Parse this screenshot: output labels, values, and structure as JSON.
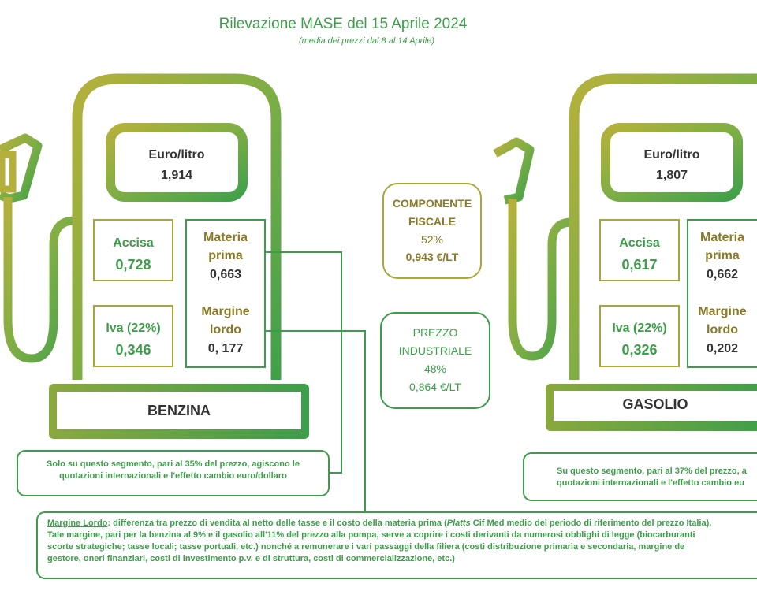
{
  "header": {
    "title": "Rilevazione MASE del 15 Aprile 2024",
    "subtitle": "(media dei prezzi dal 8 al 14 Aprile)"
  },
  "benzina": {
    "euro_litro_label": "Euro/litro",
    "euro_litro_value": "1,914",
    "accisa_label": "Accisa",
    "accisa_value": "0,728",
    "iva_label": "Iva (22%)",
    "iva_value": "0,346",
    "materia_line1": "Materia",
    "materia_line2": "prima",
    "materia_value": "0,663",
    "margine_line1": "Margine",
    "margine_line2": "lordo",
    "margine_value": "0, 177",
    "name": "BENZINA"
  },
  "gasolio": {
    "euro_litro_label": "Euro/litro",
    "euro_litro_value": "1,807",
    "accisa_label": "Accisa",
    "accisa_value": "0,617",
    "iva_label": "Iva (22%)",
    "iva_value": "0,326",
    "materia_line1": "Materia",
    "materia_line2": "prima",
    "materia_value": "0,662",
    "margine_line1": "Margine",
    "margine_line2": "lordo",
    "margine_value": "0,202",
    "name": "GASOLIO"
  },
  "componente_fiscale": {
    "line1": "COMPONENTE",
    "line2": "FISCALE",
    "percent": "52%",
    "value": "0,943 €/LT"
  },
  "prezzo_industriale": {
    "line1": "PREZZO",
    "line2": "INDUSTRIALE",
    "percent": "48%",
    "value": "0,864 €/LT"
  },
  "notes": {
    "benzina_line1": "Solo su questo segmento, pari al 35% del prezzo, agiscono le",
    "benzina_line2": "quotazioni internazionali e l'effetto cambio euro/dollaro",
    "gasolio_line1": "Su questo segmento, pari al 37% del prezzo, a",
    "gasolio_line2": "quotazioni internazionali e l'effetto cambio eu",
    "margine_term": "Margine Lordo",
    "margine_p1": ": differenza tra prezzo di vendita al netto delle tasse e il costo della materia prima (",
    "margine_platts": "Platts",
    "margine_p2": " Cif Med medio del periodo di riferimento del prezzo Italia).",
    "margine_line2": "Tale margine, pari per la benzina al 9% e il gasolio all'11% del prezzo alla pompa, serve a coprire i costi derivanti da numerosi obblighi di legge (biocarburanti",
    "margine_line3": "scorte strategiche; tasse locali; tasse portuali, etc.) nonché a remunerare i vari passaggi della filiera (costi distribuzione primaria e secondaria, margine de",
    "margine_line4": "gestore, oneri finanziari, costi di investimento p.v. e di struttura, costi di commercializzazione, etc.)"
  },
  "colors": {
    "green": "#3d9e4a",
    "olive": "#a8a83a",
    "gold": "#8a7a25"
  }
}
